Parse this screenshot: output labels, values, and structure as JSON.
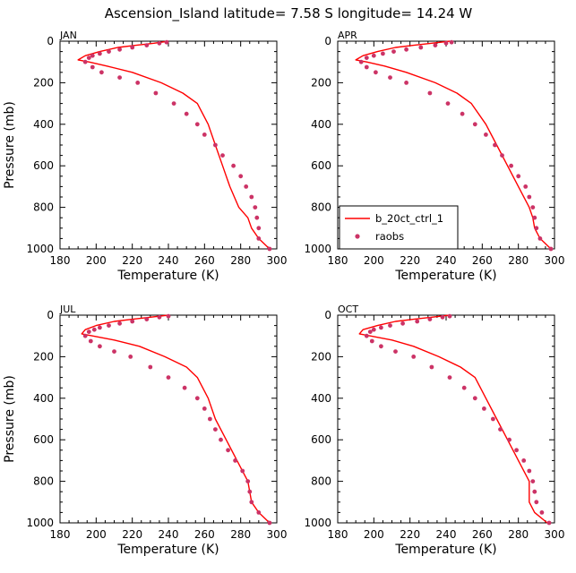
{
  "figure": {
    "title": "Ascension_Island   latitude= 7.58 S longitude= 14.24 W"
  },
  "chart_data": [
    {
      "type": "line",
      "panel_label": "JAN",
      "xlabel": "Temperature (K)",
      "ylabel": "Pressure (mb)",
      "xlim": [
        180,
        300
      ],
      "ylim": [
        1000,
        0
      ],
      "xticks": [
        180,
        200,
        220,
        240,
        260,
        280,
        300
      ],
      "yticks": [
        0,
        200,
        400,
        600,
        800,
        1000
      ],
      "series": [
        {
          "name": "b_20ct_ctrl_1",
          "style": "line",
          "color": "#ff0000",
          "points": [
            [
              240,
              0
            ],
            [
              232,
              10
            ],
            [
              222,
              20
            ],
            [
              212,
              30
            ],
            [
              202,
              50
            ],
            [
              194,
              70
            ],
            [
              190,
              90
            ],
            [
              196,
              100
            ],
            [
              206,
              120
            ],
            [
              220,
              150
            ],
            [
              236,
              200
            ],
            [
              248,
              250
            ],
            [
              256,
              300
            ],
            [
              262,
              400
            ],
            [
              266,
              500
            ],
            [
              270,
              600
            ],
            [
              274,
              700
            ],
            [
              279,
              800
            ],
            [
              284,
              850
            ],
            [
              286,
              900
            ],
            [
              290,
              950
            ],
            [
              296,
              1000
            ]
          ]
        },
        {
          "name": "raobs",
          "style": "scatter",
          "color": "#cc3366",
          "points": [
            [
              239,
              5
            ],
            [
              235,
              10
            ],
            [
              228,
              20
            ],
            [
              220,
              30
            ],
            [
              213,
              40
            ],
            [
              207,
              50
            ],
            [
              202,
              60
            ],
            [
              198,
              70
            ],
            [
              196,
              80
            ],
            [
              194,
              100
            ],
            [
              198,
              125
            ],
            [
              203,
              150
            ],
            [
              213,
              175
            ],
            [
              223,
              200
            ],
            [
              233,
              250
            ],
            [
              243,
              300
            ],
            [
              250,
              350
            ],
            [
              256,
              400
            ],
            [
              260,
              450
            ],
            [
              266,
              500
            ],
            [
              270,
              550
            ],
            [
              276,
              600
            ],
            [
              280,
              650
            ],
            [
              283,
              700
            ],
            [
              286,
              750
            ],
            [
              288,
              800
            ],
            [
              289,
              850
            ],
            [
              290,
              900
            ],
            [
              290,
              950
            ],
            [
              296,
              1000
            ]
          ]
        }
      ]
    },
    {
      "type": "line",
      "panel_label": "APR",
      "xlabel": "Temperature (K)",
      "ylabel": "",
      "xlim": [
        180,
        300
      ],
      "ylim": [
        1000,
        0
      ],
      "xticks": [
        180,
        200,
        220,
        240,
        260,
        280,
        300
      ],
      "yticks": [
        0,
        200,
        400,
        600,
        800,
        1000
      ],
      "legend": {
        "placement": "lower-left",
        "entries": [
          "b_20ct_ctrl_1",
          "raobs"
        ]
      },
      "series": [
        {
          "name": "b_20ct_ctrl_1",
          "style": "line",
          "color": "#ff0000",
          "points": [
            [
              242,
              0
            ],
            [
              232,
              10
            ],
            [
              222,
              20
            ],
            [
              212,
              30
            ],
            [
              202,
              50
            ],
            [
              194,
              70
            ],
            [
              190,
              90
            ],
            [
              196,
              100
            ],
            [
              206,
              120
            ],
            [
              218,
              150
            ],
            [
              234,
              200
            ],
            [
              246,
              250
            ],
            [
              254,
              300
            ],
            [
              262,
              400
            ],
            [
              268,
              500
            ],
            [
              274,
              600
            ],
            [
              280,
              700
            ],
            [
              286,
              800
            ],
            [
              288,
              850
            ],
            [
              289,
              900
            ],
            [
              292,
              950
            ],
            [
              298,
              1000
            ]
          ]
        },
        {
          "name": "raobs",
          "style": "scatter",
          "color": "#cc3366",
          "points": [
            [
              243,
              5
            ],
            [
              240,
              10
            ],
            [
              234,
              20
            ],
            [
              226,
              30
            ],
            [
              218,
              40
            ],
            [
              211,
              50
            ],
            [
              205,
              60
            ],
            [
              200,
              70
            ],
            [
              196,
              80
            ],
            [
              193,
              100
            ],
            [
              196,
              125
            ],
            [
              201,
              150
            ],
            [
              209,
              175
            ],
            [
              218,
              200
            ],
            [
              231,
              250
            ],
            [
              241,
              300
            ],
            [
              249,
              350
            ],
            [
              256,
              400
            ],
            [
              262,
              450
            ],
            [
              267,
              500
            ],
            [
              271,
              550
            ],
            [
              276,
              600
            ],
            [
              280,
              650
            ],
            [
              284,
              700
            ],
            [
              286,
              750
            ],
            [
              288,
              800
            ],
            [
              289,
              850
            ],
            [
              290,
              900
            ],
            [
              292,
              950
            ],
            [
              298,
              1000
            ]
          ]
        }
      ]
    },
    {
      "type": "line",
      "panel_label": "JUL",
      "xlabel": "Temperature (K)",
      "ylabel": "Pressure (mb)",
      "xlim": [
        180,
        300
      ],
      "ylim": [
        1000,
        0
      ],
      "xticks": [
        180,
        200,
        220,
        240,
        260,
        280,
        300
      ],
      "yticks": [
        0,
        200,
        400,
        600,
        800,
        1000
      ],
      "series": [
        {
          "name": "b_20ct_ctrl_1",
          "style": "line",
          "color": "#ff0000",
          "points": [
            [
              240,
              0
            ],
            [
              230,
              10
            ],
            [
              220,
              20
            ],
            [
              210,
              30
            ],
            [
              200,
              50
            ],
            [
              194,
              70
            ],
            [
              192,
              90
            ],
            [
              198,
              100
            ],
            [
              210,
              120
            ],
            [
              224,
              150
            ],
            [
              238,
              200
            ],
            [
              250,
              250
            ],
            [
              256,
              300
            ],
            [
              262,
              400
            ],
            [
              266,
              500
            ],
            [
              272,
              600
            ],
            [
              278,
              700
            ],
            [
              284,
              800
            ],
            [
              285,
              850
            ],
            [
              286,
              900
            ],
            [
              290,
              950
            ],
            [
              296,
              1000
            ]
          ]
        },
        {
          "name": "raobs",
          "style": "scatter",
          "color": "#cc3366",
          "points": [
            [
              240,
              5
            ],
            [
              235,
              10
            ],
            [
              228,
              20
            ],
            [
              220,
              30
            ],
            [
              213,
              40
            ],
            [
              207,
              50
            ],
            [
              202,
              60
            ],
            [
              199,
              70
            ],
            [
              196,
              80
            ],
            [
              194,
              100
            ],
            [
              197,
              125
            ],
            [
              202,
              150
            ],
            [
              210,
              175
            ],
            [
              219,
              200
            ],
            [
              230,
              250
            ],
            [
              240,
              300
            ],
            [
              249,
              350
            ],
            [
              256,
              400
            ],
            [
              260,
              450
            ],
            [
              263,
              500
            ],
            [
              266,
              550
            ],
            [
              269,
              600
            ],
            [
              273,
              650
            ],
            [
              277,
              700
            ],
            [
              281,
              750
            ],
            [
              284,
              800
            ],
            [
              285,
              850
            ],
            [
              286,
              900
            ],
            [
              290,
              950
            ],
            [
              296,
              1000
            ]
          ]
        }
      ]
    },
    {
      "type": "line",
      "panel_label": "OCT",
      "xlabel": "Temperature (K)",
      "ylabel": "",
      "xlim": [
        180,
        300
      ],
      "ylim": [
        1000,
        0
      ],
      "xticks": [
        180,
        200,
        220,
        240,
        260,
        280,
        300
      ],
      "yticks": [
        0,
        200,
        400,
        600,
        800,
        1000
      ],
      "series": [
        {
          "name": "b_20ct_ctrl_1",
          "style": "line",
          "color": "#ff0000",
          "points": [
            [
              242,
              0
            ],
            [
              232,
              10
            ],
            [
              222,
              20
            ],
            [
              212,
              30
            ],
            [
              202,
              50
            ],
            [
              194,
              70
            ],
            [
              192,
              90
            ],
            [
              198,
              100
            ],
            [
              210,
              120
            ],
            [
              222,
              150
            ],
            [
              236,
              200
            ],
            [
              248,
              250
            ],
            [
              256,
              300
            ],
            [
              262,
              400
            ],
            [
              268,
              500
            ],
            [
              274,
              600
            ],
            [
              280,
              700
            ],
            [
              286,
              800
            ],
            [
              286,
              850
            ],
            [
              286,
              900
            ],
            [
              289,
              950
            ],
            [
              296,
              1000
            ]
          ]
        },
        {
          "name": "raobs",
          "style": "scatter",
          "color": "#cc3366",
          "points": [
            [
              242,
              5
            ],
            [
              238,
              10
            ],
            [
              231,
              20
            ],
            [
              224,
              30
            ],
            [
              216,
              40
            ],
            [
              209,
              50
            ],
            [
              204,
              60
            ],
            [
              200,
              70
            ],
            [
              198,
              80
            ],
            [
              196,
              100
            ],
            [
              199,
              125
            ],
            [
              204,
              150
            ],
            [
              212,
              175
            ],
            [
              222,
              200
            ],
            [
              232,
              250
            ],
            [
              242,
              300
            ],
            [
              250,
              350
            ],
            [
              256,
              400
            ],
            [
              261,
              450
            ],
            [
              266,
              500
            ],
            [
              270,
              550
            ],
            [
              275,
              600
            ],
            [
              279,
              650
            ],
            [
              283,
              700
            ],
            [
              286,
              750
            ],
            [
              288,
              800
            ],
            [
              289,
              850
            ],
            [
              290,
              900
            ],
            [
              293,
              950
            ],
            [
              297,
              1000
            ]
          ]
        }
      ]
    }
  ]
}
